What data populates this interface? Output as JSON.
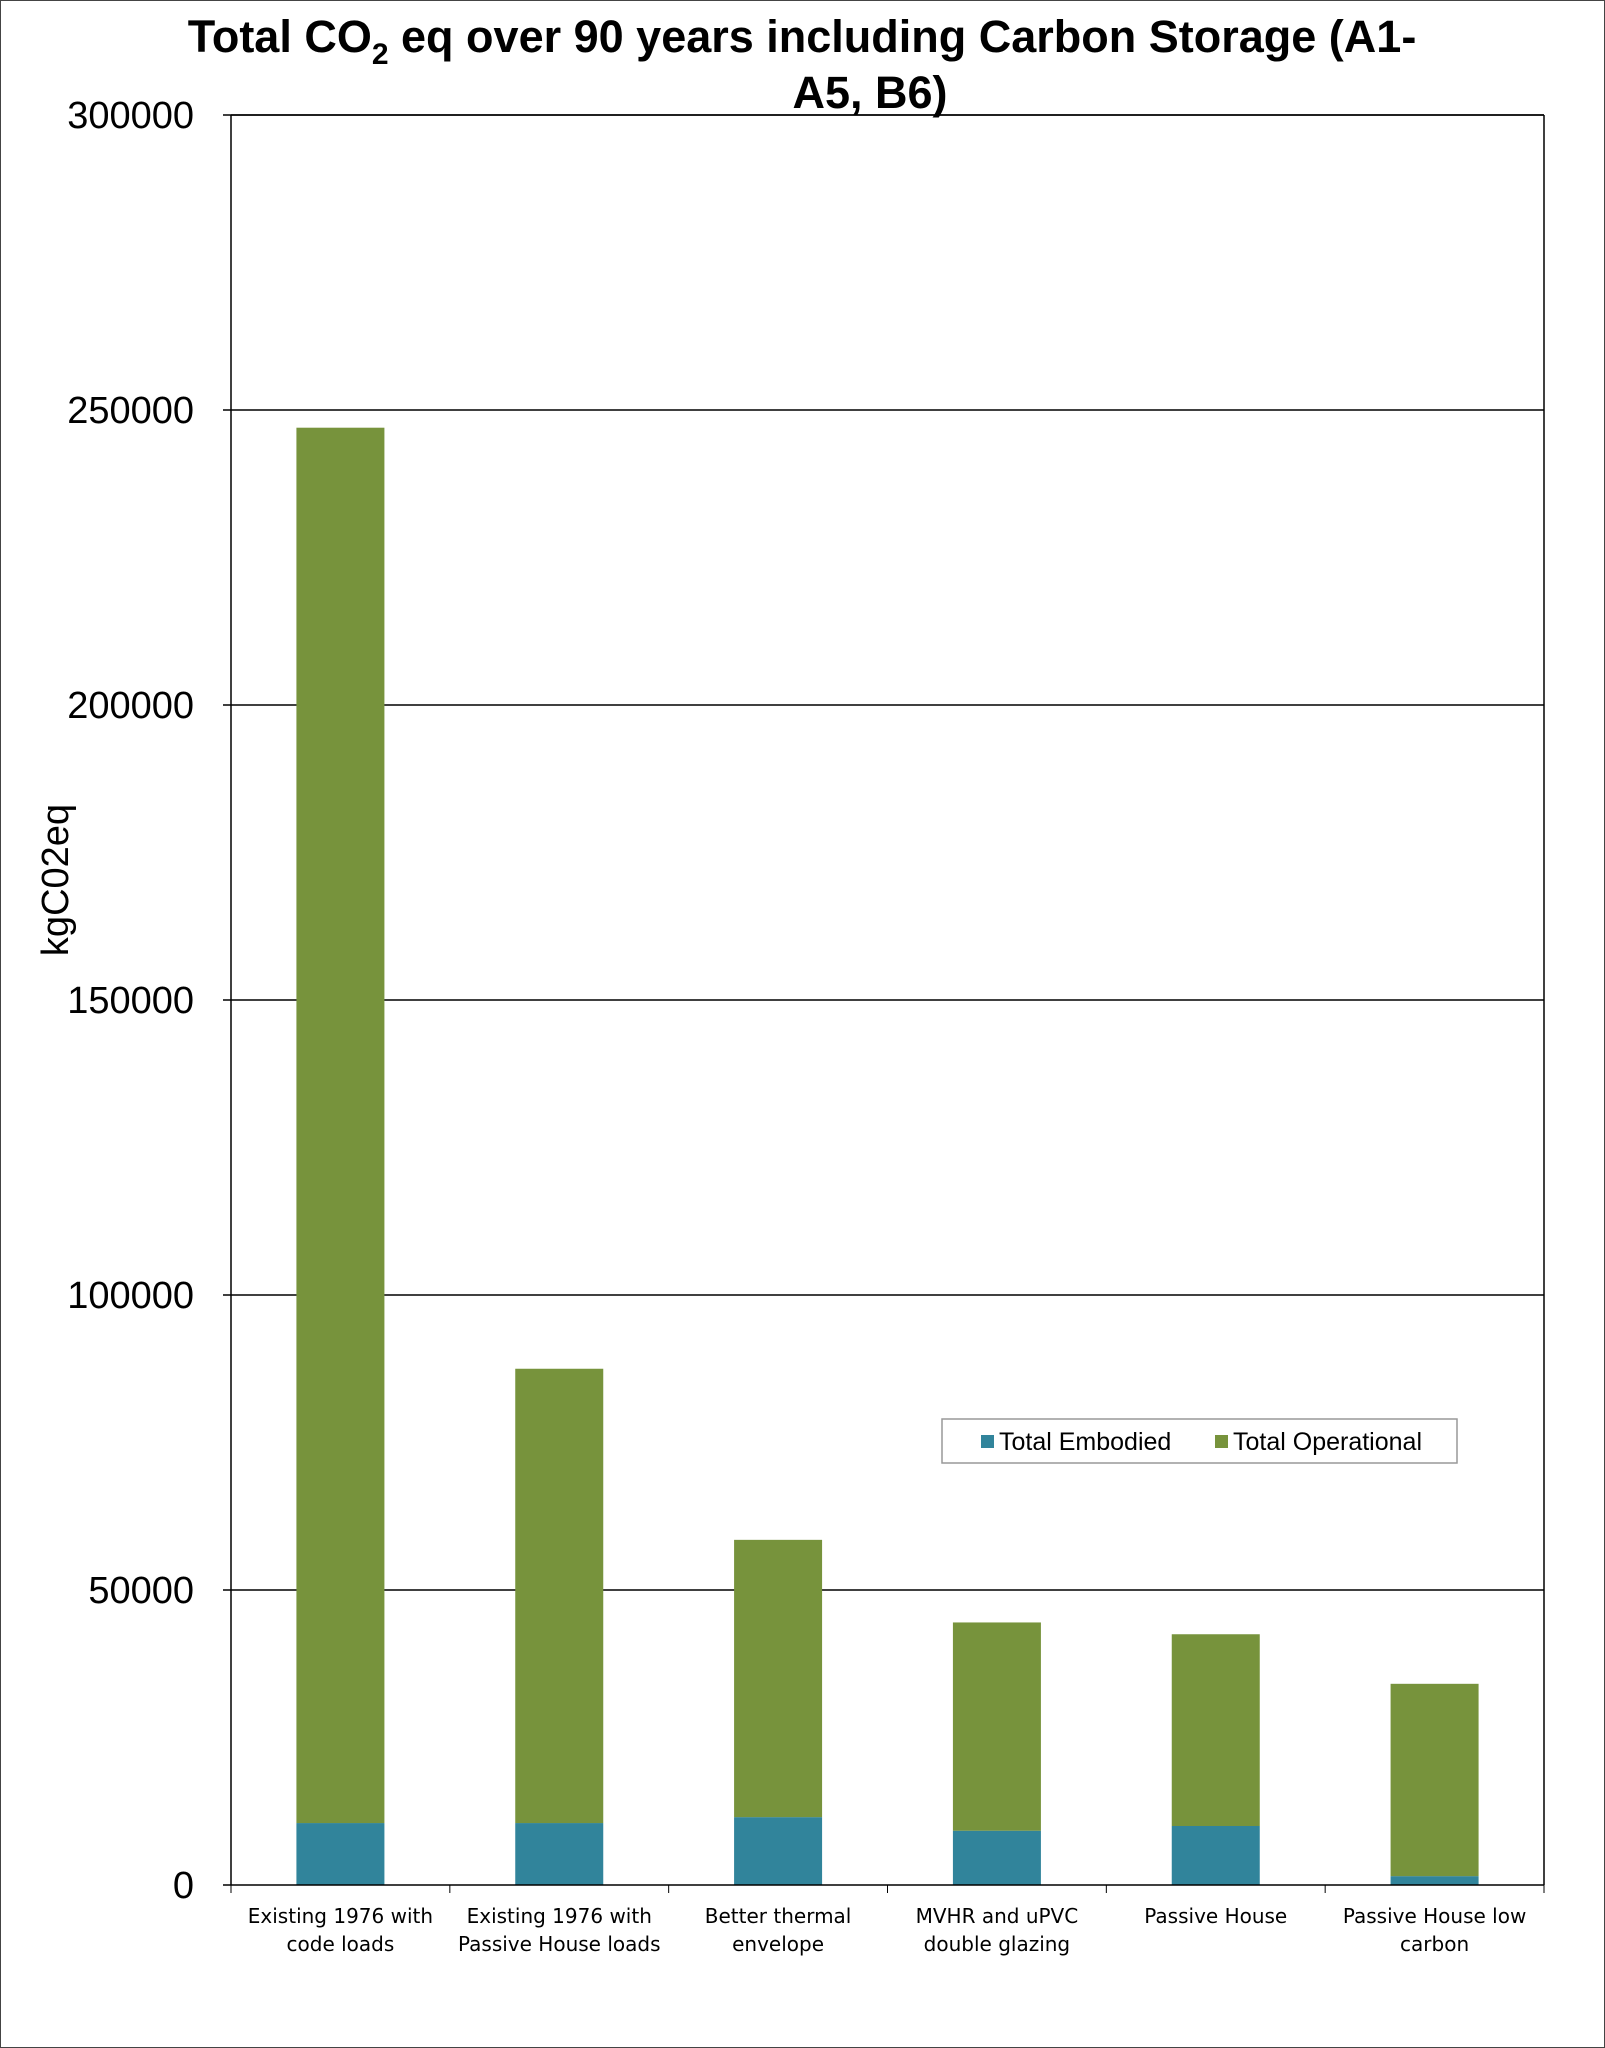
{
  "chart_data": {
    "type": "bar",
    "stacked": true,
    "title": {
      "line1_prefix": "Total CO",
      "line1_subscript": "2",
      "line1_suffix": " eq over 90 years including Carbon Storage (A1-",
      "line2": "A5, B6)"
    },
    "xlabel": "",
    "ylabel": "kgC02eq",
    "ylim": [
      0,
      300000
    ],
    "yticks": [
      "0",
      "50000",
      "100000",
      "150000",
      "200000",
      "250000",
      "300000"
    ],
    "grid": true,
    "legend_position": "inside-right",
    "categories": [
      [
        "Existing 1976 with",
        "code loads"
      ],
      [
        "Existing 1976 with",
        "Passive House loads"
      ],
      [
        "Better thermal",
        "envelope"
      ],
      [
        "MVHR and uPVC",
        "double glazing"
      ],
      [
        "Passive House"
      ],
      [
        "Passive House low",
        "carbon"
      ]
    ],
    "series": [
      {
        "name": "Total Embodied",
        "color": "#31849B",
        "values": [
          10500,
          10500,
          11500,
          9200,
          10000,
          1500
        ]
      },
      {
        "name": "Total Operational",
        "color": "#77933C",
        "values": [
          236500,
          77000,
          47000,
          35300,
          32500,
          32600
        ]
      }
    ]
  }
}
